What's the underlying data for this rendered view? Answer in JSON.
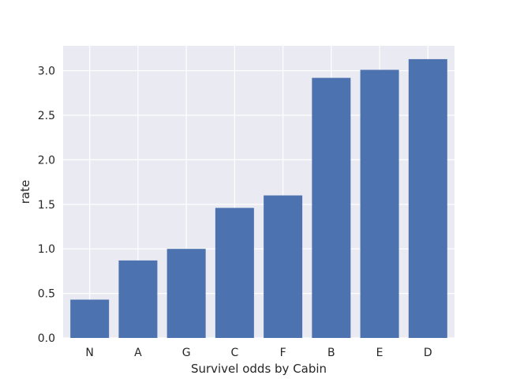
{
  "chart_data": {
    "type": "bar",
    "title": "",
    "xlabel": "Survivel odds by Cabin",
    "ylabel": "rate",
    "categories": [
      "N",
      "A",
      "G",
      "C",
      "F",
      "B",
      "E",
      "D"
    ],
    "values": [
      0.43,
      0.87,
      1.0,
      1.46,
      1.6,
      2.92,
      3.01,
      3.13
    ],
    "ylim": [
      0,
      3.28
    ],
    "yticks": [
      "0.0",
      "0.5",
      "1.0",
      "1.5",
      "2.0",
      "2.5",
      "3.0"
    ],
    "grid": true,
    "colors": {
      "bar": "#4c72b0",
      "background": "#eaeaf2",
      "grid": "#ffffff",
      "text": "#262626"
    }
  }
}
